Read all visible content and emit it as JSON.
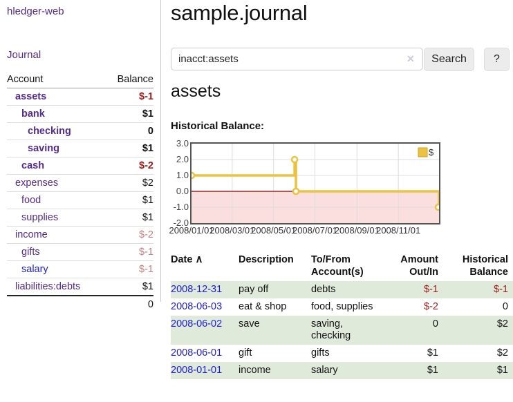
{
  "sidebar": {
    "app_title": "hledger-web",
    "journal_label": "Journal",
    "accounts_table": {
      "headers": {
        "account": "Account",
        "balance": "Balance"
      },
      "rows": [
        {
          "name": "assets",
          "balance": "$-1"
        },
        {
          "name": "bank",
          "balance": "$1"
        },
        {
          "name": "checking",
          "balance": "0"
        },
        {
          "name": "saving",
          "balance": "$1"
        },
        {
          "name": "cash",
          "balance": "$-2"
        },
        {
          "name": "expenses",
          "balance": "$2"
        },
        {
          "name": "food",
          "balance": "$1"
        },
        {
          "name": "supplies",
          "balance": "$1"
        },
        {
          "name": "income",
          "balance": "$-2"
        },
        {
          "name": "gifts",
          "balance": "$-1"
        },
        {
          "name": "salary",
          "balance": "$-1"
        },
        {
          "name": "liabilities:debts",
          "balance": "$1"
        }
      ],
      "total": "0"
    }
  },
  "main": {
    "title": "sample.journal",
    "search": {
      "value": "inacct:assets",
      "clear_icon": "✕",
      "search_button_label": "Search",
      "help_button_label": "?"
    },
    "account_heading": "assets",
    "chart_heading": "Historical Balance:"
  },
  "chart_data": {
    "type": "line",
    "step": true,
    "title": "Historical Balance",
    "x_range": [
      "2008-01-01",
      "2008-12-31"
    ],
    "ylim": [
      -2,
      3
    ],
    "y_ticks": [
      3.0,
      2.0,
      1.0,
      0.0,
      -1.0,
      -2.0
    ],
    "x_ticks": [
      "2008/01/01",
      "2008/03/01",
      "2008/05/01",
      "2008/07/01",
      "2008/09/01",
      "2008/11/01"
    ],
    "series": [
      {
        "name": "$",
        "color": "#edc240",
        "points": [
          [
            "2008-01-01",
            1
          ],
          [
            "2008-06-01",
            2
          ],
          [
            "2008-06-03",
            0
          ],
          [
            "2008-12-31",
            -1
          ]
        ]
      }
    ],
    "legend_position": "top-right",
    "grid": true,
    "zero_line_color": "#8b0000",
    "negative_region_color": "#fbdede",
    "gridline_color": "#dcdcdc",
    "border_color": "#545454"
  },
  "register_table": {
    "headers": {
      "date": "Date",
      "sort_icon": "∧",
      "description": "Description",
      "accounts": "To/From Account(s)",
      "amount": "Amount Out/In",
      "balance": "Historical Balance"
    },
    "rows": [
      {
        "date": "2008-12-31",
        "description": "pay off",
        "accounts": "debts",
        "amount": "$-1",
        "balance": "$-1"
      },
      {
        "date": "2008-06-03",
        "description": "eat & shop",
        "accounts": "food, supplies",
        "amount": "$-2",
        "balance": "0"
      },
      {
        "date": "2008-06-02",
        "description": "save",
        "accounts": "saving,\nchecking",
        "amount": "0",
        "balance": "$2"
      },
      {
        "date": "2008-06-01",
        "description": "gift",
        "accounts": "gifts",
        "amount": "$1",
        "balance": "$2"
      },
      {
        "date": "2008-01-01",
        "description": "income",
        "accounts": "salary",
        "amount": "$1",
        "balance": "$1"
      }
    ]
  },
  "colors": {
    "link_purple": "#542a95",
    "link_blue": "#1b1be0",
    "negative_strong": "#9b1a1a",
    "negative_faded": "#c47e7e",
    "row_stripe_green": "#dfeada",
    "chart_series_gold": "#edc240",
    "chart_negative_pink": "#fbdede",
    "chart_zero_line": "#8b0000"
  }
}
